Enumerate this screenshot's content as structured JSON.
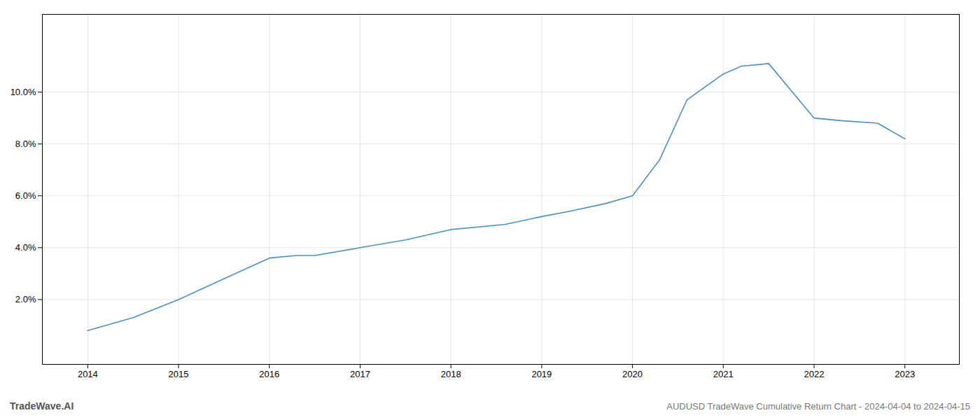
{
  "chart_data": {
    "type": "line",
    "title": "AUDUSD TradeWave Cumulative Return Chart - 2024-04-04 to 2024-04-15",
    "annotations": [
      "TradeWave.AI"
    ],
    "x": [
      2014,
      2014.5,
      2015,
      2015.5,
      2016,
      2016.3,
      2016.5,
      2017,
      2017.5,
      2018,
      2018.3,
      2018.6,
      2019,
      2019.3,
      2019.7,
      2020,
      2020.3,
      2020.6,
      2021,
      2021.2,
      2021.5,
      2022,
      2022.3,
      2022.7,
      2023
    ],
    "values": [
      0.008,
      0.013,
      0.02,
      0.028,
      0.036,
      0.037,
      0.037,
      0.04,
      0.043,
      0.047,
      0.048,
      0.049,
      0.052,
      0.054,
      0.057,
      0.06,
      0.074,
      0.097,
      0.107,
      0.11,
      0.111,
      0.09,
      0.089,
      0.088,
      0.082
    ],
    "color": "#4a90c4",
    "xlim": [
      2013.5,
      2023.6
    ],
    "ylim": [
      -0.005,
      0.13
    ],
    "xticks": [
      2014,
      2015,
      2016,
      2017,
      2018,
      2019,
      2020,
      2021,
      2022,
      2023
    ],
    "yticks": [
      {
        "value": 0.02,
        "label": "2.0%"
      },
      {
        "value": 0.04,
        "label": "4.0%"
      },
      {
        "value": 0.06,
        "label": "6.0%"
      },
      {
        "value": 0.08,
        "label": "8.0%"
      },
      {
        "value": 0.1,
        "label": "10.0%"
      }
    ],
    "grid": true
  }
}
